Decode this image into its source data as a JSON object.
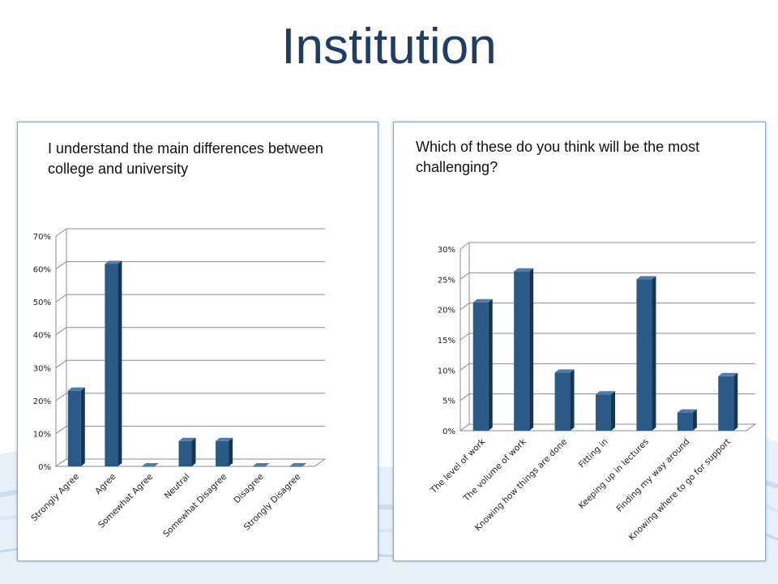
{
  "page": {
    "title": "Institution"
  },
  "colors": {
    "bar_front": "#2c5a86",
    "bar_side": "#163552",
    "bar_top": "#4d7caa",
    "grid": "#8c8c8c",
    "title": "#1f3d66"
  },
  "chart_data": [
    {
      "type": "bar",
      "title": "I understand the main differences between college and university",
      "categories": [
        "Strongly Agree",
        "Agree",
        "Somewhat Agree",
        "Neutral",
        "Somewhat Disagree",
        "Disagree",
        "Strongly Disagree"
      ],
      "values": [
        23,
        61.5,
        0,
        7.7,
        7.7,
        0,
        0
      ],
      "ylim": [
        0,
        70
      ],
      "yticks": [
        "0%",
        "10%",
        "20%",
        "30%",
        "40%",
        "50%",
        "60%",
        "70%"
      ],
      "grid": true,
      "xlabel": "",
      "ylabel": ""
    },
    {
      "type": "bar",
      "title": "Which of these do you think will be the most challenging?",
      "categories": [
        "The level of work",
        "The volume of work",
        "Knowing how things are done",
        "Fitting in",
        "Keeping up in lectures",
        "Finding my way around",
        "Knowing where to go for support"
      ],
      "values": [
        21.2,
        26.3,
        9.6,
        6,
        25,
        3,
        9
      ],
      "ylim": [
        0,
        30
      ],
      "yticks": [
        "0%",
        "5%",
        "10%",
        "15%",
        "20%",
        "25%",
        "30%"
      ],
      "grid": true,
      "xlabel": "",
      "ylabel": ""
    }
  ]
}
